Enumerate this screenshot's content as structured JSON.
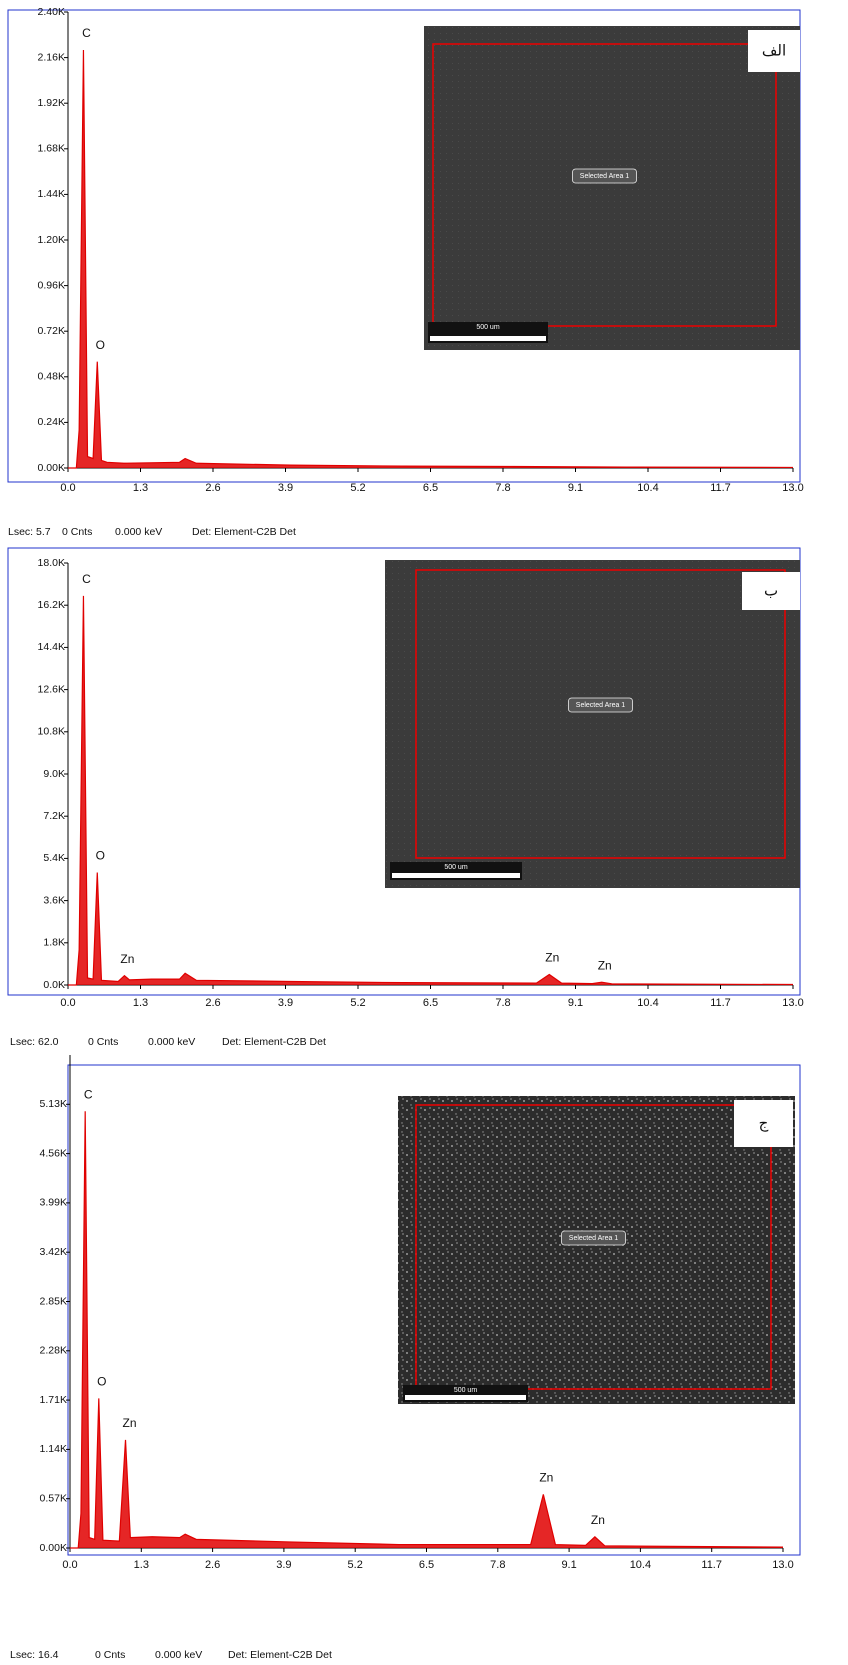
{
  "chart_data": [
    {
      "type": "area",
      "xlim": [
        0,
        13
      ],
      "ylim": [
        0,
        2400
      ],
      "yticks": [
        {
          "value": 0,
          "label": "0.00K"
        },
        {
          "value": 240,
          "label": "0.24K"
        },
        {
          "value": 480,
          "label": "0.48K"
        },
        {
          "value": 720,
          "label": "0.72K"
        },
        {
          "value": 960,
          "label": "0.96K"
        },
        {
          "value": 1200,
          "label": "1.20K"
        },
        {
          "value": 1440,
          "label": "1.44K"
        },
        {
          "value": 1680,
          "label": "1.68K"
        },
        {
          "value": 1920,
          "label": "1.92K"
        },
        {
          "value": 2160,
          "label": "2.16K"
        },
        {
          "value": 2400,
          "label": "2.40K"
        }
      ],
      "xticks": [
        {
          "value": 0,
          "label": "0.0"
        },
        1.3,
        2.6,
        3.9,
        5.2,
        6.5,
        7.8,
        9.1,
        10.4,
        11.7,
        {
          "value": 13,
          "label": "13.0"
        }
      ],
      "x": [
        0,
        0.15,
        0.2,
        0.277,
        0.35,
        0.45,
        0.525,
        0.6,
        0.7,
        1.0,
        2.0,
        2.1,
        2.3,
        4,
        6,
        8,
        10,
        13
      ],
      "series": [
        {
          "color": "#e00000",
          "values": [
            0,
            0,
            200,
            2200,
            60,
            50,
            560,
            40,
            30,
            25,
            30,
            50,
            25,
            15,
            10,
            8,
            5,
            3
          ]
        }
      ],
      "peak_labels": [
        {
          "text": "C",
          "x": 0.277
        },
        {
          "text": "O",
          "x": 0.525
        }
      ],
      "inset": {
        "panel_label": "الف",
        "selected_area": "Selected Area 1",
        "scale_bar": "500 um"
      },
      "footer": [
        "Lsec: 5.7",
        "0 Cnts",
        "0.000 keV",
        "Det: Element-C2B Det"
      ]
    },
    {
      "type": "area",
      "xlim": [
        0,
        13
      ],
      "ylim": [
        0,
        18000
      ],
      "yticks": [
        {
          "value": 0,
          "label": "0.0K"
        },
        {
          "value": 1800,
          "label": "1.8K"
        },
        {
          "value": 3600,
          "label": "3.6K"
        },
        {
          "value": 5400,
          "label": "5.4K"
        },
        {
          "value": 7200,
          "label": "7.2K"
        },
        {
          "value": 9000,
          "label": "9.0K"
        },
        {
          "value": 10800,
          "label": "10.8K"
        },
        {
          "value": 12600,
          "label": "12.6K"
        },
        {
          "value": 14400,
          "label": "14.4K"
        },
        {
          "value": 16200,
          "label": "16.2K"
        },
        {
          "value": 18000,
          "label": "18.0K"
        }
      ],
      "xticks": [
        {
          "value": 0,
          "label": "0.0"
        },
        1.3,
        2.6,
        3.9,
        5.2,
        6.5,
        7.8,
        9.1,
        10.4,
        11.7,
        {
          "value": 13,
          "label": "13.0"
        }
      ],
      "x": [
        0,
        0.15,
        0.2,
        0.277,
        0.35,
        0.45,
        0.525,
        0.6,
        0.9,
        1.012,
        1.1,
        1.5,
        2.0,
        2.1,
        2.3,
        4,
        6,
        8.4,
        8.63,
        8.85,
        9.4,
        9.57,
        9.75,
        13
      ],
      "series": [
        {
          "color": "#e00000",
          "values": [
            0,
            0,
            1500,
            16600,
            300,
            250,
            4800,
            200,
            150,
            400,
            220,
            250,
            250,
            500,
            200,
            150,
            100,
            80,
            450,
            80,
            60,
            120,
            50,
            20
          ]
        }
      ],
      "peak_labels": [
        {
          "text": "C",
          "x": 0.277
        },
        {
          "text": "O",
          "x": 0.525
        },
        {
          "text": "Zn",
          "x": 1.012
        },
        {
          "text": "Zn",
          "x": 8.63
        },
        {
          "text": "Zn",
          "x": 9.57
        }
      ],
      "inset": {
        "panel_label": "ب",
        "selected_area": "Selected Area 1",
        "scale_bar": "500 um"
      },
      "footer": [
        "Lsec: 62.0",
        "0 Cnts",
        "0.000 keV",
        "Det: Element-C2B Det"
      ]
    },
    {
      "type": "area",
      "xlim": [
        0,
        13
      ],
      "ylim": [
        0,
        5700
      ],
      "yticks": [
        {
          "value": 0,
          "label": "0.00K"
        },
        {
          "value": 570,
          "label": "0.57K"
        },
        {
          "value": 1140,
          "label": "1.14K"
        },
        {
          "value": 1710,
          "label": "1.71K"
        },
        {
          "value": 2280,
          "label": "2.28K"
        },
        {
          "value": 2850,
          "label": "2.85K"
        },
        {
          "value": 3420,
          "label": "3.42K"
        },
        {
          "value": 3990,
          "label": "3.99K"
        },
        {
          "value": 4560,
          "label": "4.56K"
        },
        {
          "value": 5130,
          "label": "5.13K"
        }
      ],
      "xticks": [
        {
          "value": 0,
          "label": "0.0"
        },
        1.3,
        2.6,
        3.9,
        5.2,
        6.5,
        7.8,
        9.1,
        10.4,
        11.7,
        {
          "value": 13,
          "label": "13.0"
        }
      ],
      "x": [
        0,
        0.15,
        0.2,
        0.277,
        0.35,
        0.45,
        0.525,
        0.6,
        0.9,
        1.012,
        1.1,
        1.5,
        2.0,
        2.1,
        2.3,
        4,
        6,
        8.4,
        8.63,
        8.85,
        9.4,
        9.57,
        9.75,
        13
      ],
      "series": [
        {
          "color": "#e00000",
          "values": [
            0,
            0,
            400,
            5050,
            120,
            100,
            1730,
            90,
            80,
            1250,
            120,
            130,
            120,
            160,
            100,
            70,
            40,
            40,
            620,
            40,
            30,
            130,
            25,
            10
          ]
        }
      ],
      "peak_labels": [
        {
          "text": "C",
          "x": 0.277
        },
        {
          "text": "O",
          "x": 0.525
        },
        {
          "text": "Zn",
          "x": 1.012
        },
        {
          "text": "Zn",
          "x": 8.63
        },
        {
          "text": "Zn",
          "x": 9.57
        }
      ],
      "inset": {
        "panel_label": "ج",
        "selected_area": "Selected Area 1",
        "scale_bar": "500 um"
      },
      "footer": [
        "Lsec: 16.4",
        "0 Cnts",
        "0.000 keV",
        "Det: Element-C2B Det"
      ]
    }
  ]
}
